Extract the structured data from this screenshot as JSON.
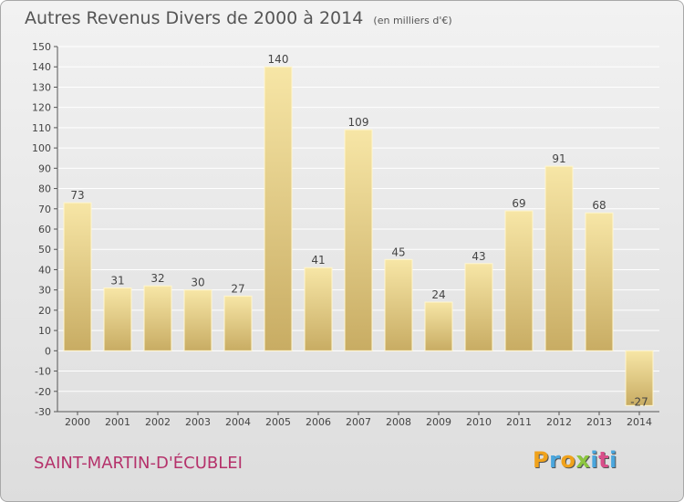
{
  "title": "Autres Revenus Divers de 2000 à 2014",
  "unit_note": "(en milliers d'€)",
  "location": "SAINT-MARTIN-D'ÉCUBLEI",
  "brand": "Proxiti",
  "colors": {
    "bar_light": "#f7e6a6",
    "bar_dark": "#c8ac63",
    "grid": "#ffffff",
    "axis": "#555555",
    "label": "#444444",
    "location": "#b5326b",
    "brand_letters": [
      "#f0a21b",
      "#4aa6dd",
      "#f0a21b",
      "#8cc63f",
      "#4aa6dd",
      "#d94f8a",
      "#4aa6dd"
    ]
  },
  "chart_data": {
    "type": "bar",
    "title": "Autres Revenus Divers de 2000 à 2014",
    "subtitle": "(en milliers d'€)",
    "xlabel": "",
    "ylabel": "",
    "categories": [
      "2000",
      "2001",
      "2002",
      "2003",
      "2004",
      "2005",
      "2006",
      "2007",
      "2008",
      "2009",
      "2010",
      "2011",
      "2012",
      "2013",
      "2014"
    ],
    "values": [
      73,
      31,
      32,
      30,
      27,
      140,
      41,
      109,
      45,
      24,
      43,
      69,
      91,
      68,
      -27
    ],
    "ylim": [
      -30,
      150
    ],
    "yticks": [
      -30,
      -20,
      -10,
      0,
      10,
      20,
      30,
      40,
      50,
      60,
      70,
      80,
      90,
      100,
      110,
      120,
      130,
      140,
      150
    ],
    "grid": true,
    "legend": "none"
  }
}
